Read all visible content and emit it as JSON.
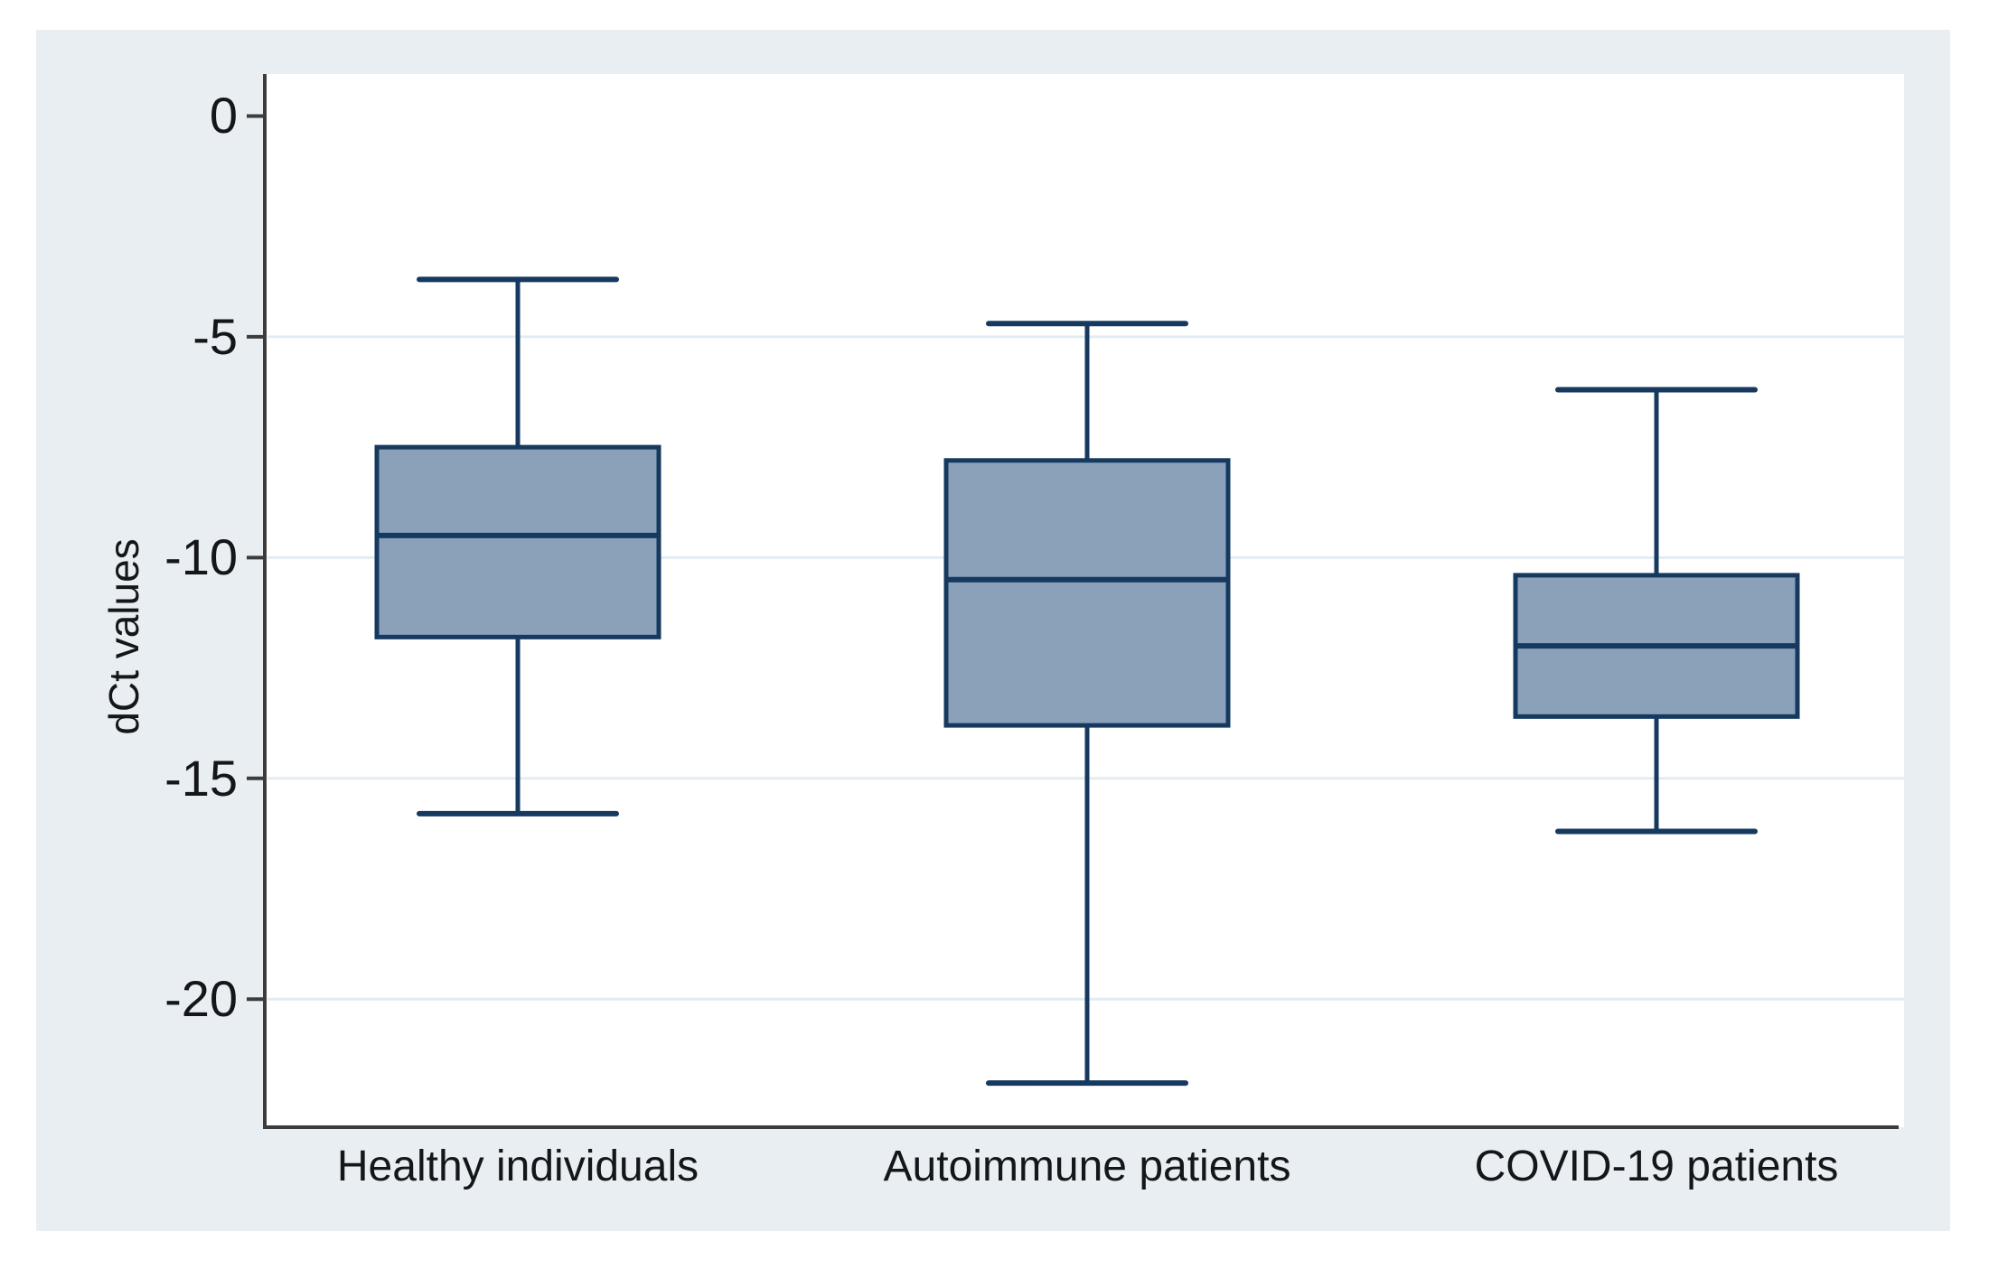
{
  "chart_data": {
    "type": "boxplot",
    "title": "",
    "xlabel": "",
    "ylabel": "dCt values",
    "categories": [
      "Healthy individuals",
      "Autoimmune patients",
      "COVID-19 patients"
    ],
    "y_ticks": [
      0,
      -5,
      -10,
      -15,
      -20
    ],
    "y_tick_labels": [
      "0",
      "-5",
      "-10",
      "-15",
      "-20"
    ],
    "ylim": [
      0.95,
      -22.9
    ],
    "grid": true,
    "legend": false,
    "series": [
      {
        "name": "Healthy individuals",
        "whisker_high": -3.7,
        "q3": -7.5,
        "median": -9.5,
        "q1": -11.8,
        "whisker_low": -15.8
      },
      {
        "name": "Autoimmune patients",
        "whisker_high": -4.7,
        "q3": -7.8,
        "median": -10.5,
        "q1": -13.8,
        "whisker_low": -21.9
      },
      {
        "name": "COVID-19 patients",
        "whisker_high": -6.2,
        "q3": -10.4,
        "median": -12.0,
        "q1": -13.6,
        "whisker_low": -16.2
      }
    ],
    "colors": {
      "figure_background": "#e8eef1",
      "plot_background": "#ffffff",
      "gridline": "#e2ecf2",
      "axis": "#3c3c3c",
      "box_fill": "#8ba1ba",
      "box_stroke": "#16395f",
      "text": "#14161a"
    }
  }
}
